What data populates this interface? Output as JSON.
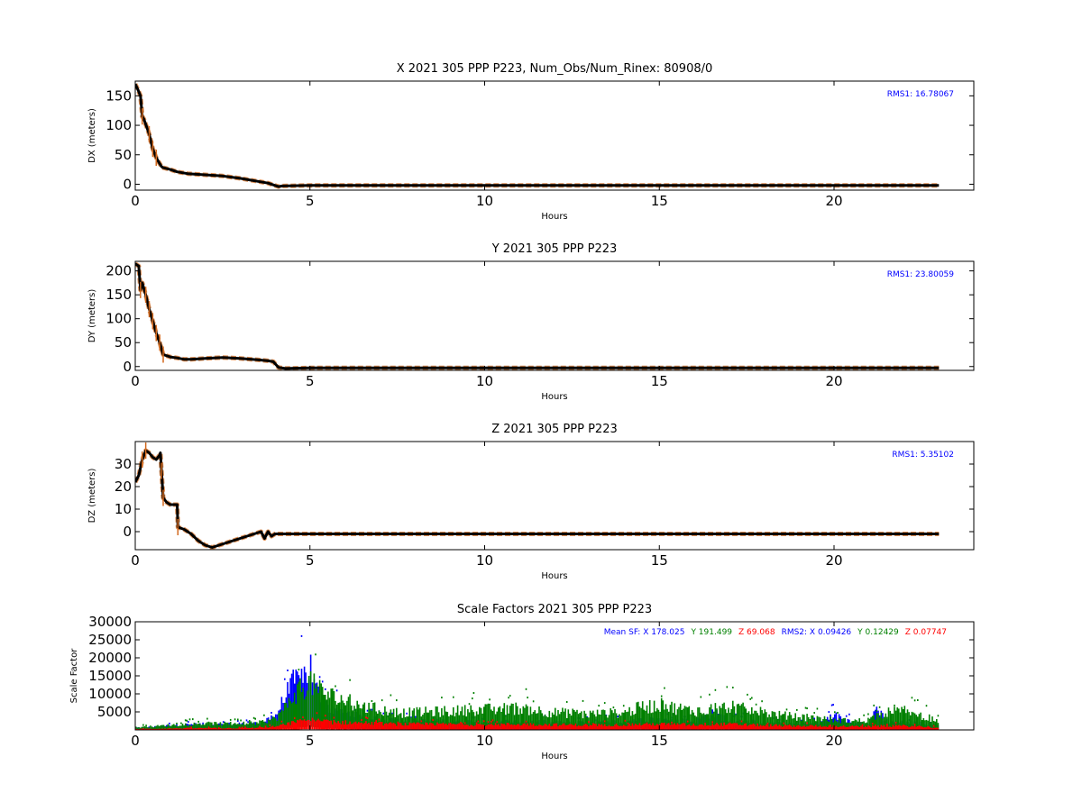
{
  "colors": {
    "black": "#000000",
    "orange": "#d2691e",
    "blue": "#0000ff",
    "green": "#008000",
    "red": "#ff0000"
  },
  "chart_data": [
    {
      "type": "line",
      "title": "X 2021 305 PPP  P223, Num_Obs/Num_Rinex: 80908/0",
      "xlabel": "Hours",
      "ylabel": "DX (meters)",
      "xlim": [
        0,
        24
      ],
      "ylim": [
        -10,
        175
      ],
      "xticks": [
        0,
        5,
        10,
        15,
        20
      ],
      "yticks": [
        0,
        50,
        100,
        150
      ],
      "annotation": "RMS1: 16.78067",
      "series": [
        {
          "color": "#000000",
          "x": [
            0,
            0.08,
            0.15,
            0.2,
            0.25,
            0.4,
            0.5,
            0.6,
            0.7,
            0.75,
            0.8,
            1.0,
            1.2,
            1.5,
            2.0,
            2.5,
            3.0,
            3.5,
            3.8,
            4.0,
            4.1,
            4.2,
            5,
            10,
            15,
            20,
            23
          ],
          "y": [
            170,
            160,
            150,
            115,
            110,
            85,
            60,
            45,
            35,
            30,
            28,
            25,
            21,
            18,
            16,
            14,
            10,
            5,
            2,
            -2,
            -4,
            -3,
            -2,
            -2,
            -2,
            -2,
            -2
          ]
        }
      ]
    },
    {
      "type": "line",
      "title": "Y 2021 305 PPP  P223",
      "xlabel": "Hours",
      "ylabel": "DY (meters)",
      "xlim": [
        0,
        24
      ],
      "ylim": [
        -8,
        220
      ],
      "xticks": [
        0,
        5,
        10,
        15,
        20
      ],
      "yticks": [
        0,
        50,
        100,
        150,
        200
      ],
      "annotation": "RMS1: 23.80059",
      "series": [
        {
          "color": "#000000",
          "x": [
            0,
            0.1,
            0.15,
            0.2,
            0.3,
            0.4,
            0.5,
            0.6,
            0.7,
            0.8,
            1.0,
            1.2,
            1.4,
            1.6,
            2.0,
            2.5,
            3.0,
            3.5,
            3.8,
            3.95,
            4.1,
            4.3,
            5,
            10,
            15,
            20,
            23
          ],
          "y": [
            215,
            210,
            160,
            175,
            150,
            120,
            95,
            70,
            50,
            25,
            20,
            18,
            15,
            15,
            17,
            19,
            17,
            14,
            12,
            10,
            -2,
            -4,
            -3,
            -3,
            -3,
            -3,
            -3
          ]
        }
      ]
    },
    {
      "type": "line",
      "title": "Z 2021 305 PPP  P223",
      "xlabel": "Hours",
      "ylabel": "DZ (meters)",
      "xlim": [
        0,
        24
      ],
      "ylim": [
        -8,
        40
      ],
      "xticks": [
        0,
        5,
        10,
        15,
        20
      ],
      "yticks": [
        0,
        10,
        20,
        30
      ],
      "annotation": "RMS1:  5.35102",
      "series": [
        {
          "color": "#000000",
          "x": [
            0,
            0.1,
            0.2,
            0.3,
            0.4,
            0.5,
            0.6,
            0.7,
            0.72,
            0.75,
            0.8,
            0.9,
            1.0,
            1.2,
            1.22,
            1.4,
            1.6,
            1.8,
            2.0,
            2.2,
            2.4,
            2.6,
            3.0,
            3.4,
            3.6,
            3.7,
            3.8,
            3.9,
            4.0,
            4.2,
            4.5,
            5,
            6,
            7,
            8,
            10,
            12,
            15,
            17,
            18,
            19,
            20,
            21,
            23
          ],
          "y": [
            22,
            25,
            32,
            36,
            35,
            33,
            32,
            34,
            35,
            27,
            15,
            13,
            12,
            12,
            2,
            1,
            -1,
            -4,
            -6,
            -7,
            -6,
            -5,
            -3,
            -1,
            0,
            -3,
            0,
            -2,
            -1,
            -1,
            -1,
            -1,
            -1,
            -1,
            -1,
            -1,
            -1,
            -1,
            -1,
            -1,
            -1,
            -1,
            -1,
            -1
          ]
        }
      ]
    },
    {
      "type": "scatter",
      "title": "Scale Factors 2021 305 PPP  P223",
      "xlabel": "Hours",
      "ylabel": "Scale Factor",
      "xlim": [
        0,
        24
      ],
      "ylim": [
        0,
        30000
      ],
      "xticks": [
        0,
        5,
        10,
        15,
        20
      ],
      "yticks": [
        5000,
        10000,
        15000,
        20000,
        25000,
        30000
      ],
      "annotation": [
        {
          "text": "Mean SF: X 178.025",
          "color": "#0000ff"
        },
        {
          "text": "Y 191.499",
          "color": "#008000"
        },
        {
          "text": "Z  69.068",
          "color": "#ff0000"
        },
        {
          "text": "RMS2: X  0.09426",
          "color": "#0000ff"
        },
        {
          "text": "Y  0.12429",
          "color": "#008000"
        },
        {
          "text": "Z  0.07747",
          "color": "#ff0000"
        }
      ],
      "series": [
        {
          "name": "X",
          "color": "#0000ff",
          "x": [
            0,
            0.5,
            1,
            1.5,
            2,
            2.5,
            3,
            3.5,
            4.0,
            4.3,
            4.5,
            4.7,
            4.9,
            5.0,
            5.1,
            5.5,
            6,
            6.5,
            7,
            7.5,
            8,
            9,
            10,
            11,
            12,
            13,
            14,
            14.5,
            15,
            15.5,
            16,
            16.5,
            17,
            17.5,
            18,
            18.5,
            19,
            19.5,
            20,
            20.5,
            21,
            21.2,
            21.5,
            22,
            22.5,
            23
          ],
          "y": [
            800,
            1000,
            1500,
            1800,
            2000,
            2000,
            2000,
            2200,
            5000,
            12000,
            16000,
            18000,
            20000,
            22000,
            15000,
            8000,
            6000,
            4000,
            3500,
            3200,
            3000,
            3000,
            2800,
            3000,
            2500,
            2400,
            3000,
            4000,
            3500,
            3200,
            3000,
            6000,
            3500,
            3000,
            2500,
            2200,
            2000,
            2200,
            5000,
            2500,
            2000,
            8000,
            3000,
            2500,
            2200,
            1500
          ]
        },
        {
          "name": "Y",
          "color": "#008000",
          "x": [
            0,
            0.5,
            1,
            1.5,
            2,
            2.5,
            3,
            3.5,
            4.0,
            4.3,
            4.5,
            4.7,
            4.9,
            5.0,
            5.1,
            5.5,
            6,
            6.5,
            7,
            7.5,
            8,
            9,
            10,
            11,
            12,
            13,
            14,
            14.5,
            15,
            15.5,
            16,
            16.5,
            17,
            17.5,
            18,
            18.5,
            19,
            19.5,
            20,
            20.5,
            21,
            21.2,
            21.5,
            22,
            22.5,
            23
          ],
          "y": [
            900,
            1200,
            1700,
            2000,
            2200,
            2200,
            2200,
            2400,
            4000,
            8000,
            12000,
            14000,
            16000,
            17000,
            15000,
            12000,
            10000,
            8000,
            7000,
            6000,
            6000,
            6500,
            7000,
            7500,
            6000,
            5500,
            6000,
            8000,
            8500,
            7500,
            6500,
            7500,
            8000,
            7000,
            6000,
            5000,
            4500,
            4000,
            3500,
            3000,
            3500,
            5000,
            6000,
            6500,
            5000,
            3000
          ]
        },
        {
          "name": "Z",
          "color": "#ff0000",
          "x": [
            0,
            0.5,
            1,
            1.5,
            2,
            2.5,
            3,
            3.5,
            4.0,
            4.3,
            4.5,
            4.7,
            4.9,
            5.0,
            5.1,
            5.5,
            6,
            6.5,
            7,
            7.5,
            8,
            9,
            10,
            11,
            12,
            13,
            14,
            14.5,
            15,
            15.5,
            16,
            16.5,
            17,
            17.5,
            18,
            18.5,
            19,
            19.5,
            20,
            20.5,
            21,
            21.2,
            21.5,
            22,
            22.5,
            23
          ],
          "y": [
            300,
            400,
            500,
            600,
            600,
            600,
            600,
            700,
            1200,
            2000,
            2500,
            3000,
            3500,
            3600,
            3200,
            2800,
            2600,
            2400,
            2200,
            2000,
            2000,
            2000,
            1800,
            2000,
            1800,
            1700,
            1800,
            2000,
            2000,
            1900,
            1800,
            2000,
            2000,
            1800,
            1600,
            1500,
            1400,
            1400,
            1300,
            1200,
            1200,
            1300,
            1400,
            1400,
            1200,
            800
          ]
        }
      ]
    }
  ]
}
